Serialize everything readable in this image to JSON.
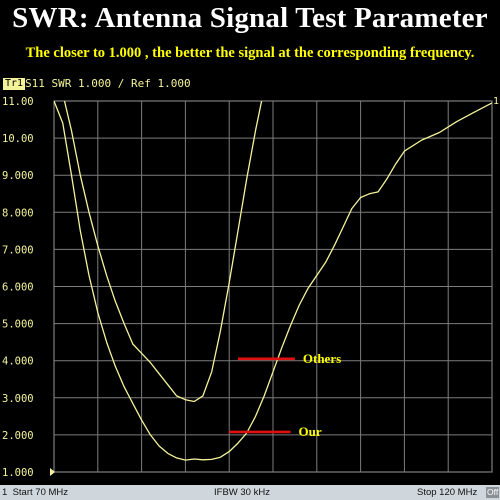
{
  "banner": {
    "title": "SWR: Antenna Signal Test Parameter",
    "subtitle": "The closer to 1.000 , the better the signal at the corresponding frequency."
  },
  "trace_header": {
    "badge": "Tr1",
    "text": "S11 SWR 1.000 / Ref 1.000"
  },
  "status_bar": {
    "channel": "1",
    "start": "Start 70 MHz",
    "ifbw": "IFBW 30 kHz",
    "stop": "Stop 120 MHz",
    "off": "Off"
  },
  "colors": {
    "trace": "#f4f39a",
    "grid": "#7d7d7d",
    "axis_labels": "#f4f39a",
    "annotation_line": "#e01010",
    "annotation_text": "#ffff00",
    "title": "#ffffff",
    "subtitle": "#ffff00"
  },
  "chart_data": {
    "type": "line",
    "x_unit": "MHz",
    "xlim": [
      70,
      120
    ],
    "ylim": [
      1.0,
      11.0
    ],
    "y_ticks": [
      {
        "value": 1,
        "label": "1.000"
      },
      {
        "value": 2,
        "label": "2.000"
      },
      {
        "value": 3,
        "label": "3.000"
      },
      {
        "value": 4,
        "label": "4.000"
      },
      {
        "value": 5,
        "label": "5.000"
      },
      {
        "value": 6,
        "label": "6.000"
      },
      {
        "value": 7,
        "label": "7.000"
      },
      {
        "value": 8,
        "label": "8.000"
      },
      {
        "value": 9,
        "label": "9.000"
      },
      {
        "value": 10,
        "label": "10.00"
      },
      {
        "value": 11,
        "label": "11.00"
      }
    ],
    "x_divisions": 10,
    "grid": true,
    "series": [
      {
        "name": "Our",
        "points": [
          [
            70.0,
            11.0
          ],
          [
            71.0,
            10.4
          ],
          [
            72.0,
            9.0
          ],
          [
            73.0,
            7.5
          ],
          [
            74.0,
            6.3
          ],
          [
            75.0,
            5.3
          ],
          [
            76.0,
            4.5
          ],
          [
            77.0,
            3.85
          ],
          [
            78.0,
            3.3
          ],
          [
            79.0,
            2.85
          ],
          [
            80.0,
            2.4
          ],
          [
            81.0,
            2.0
          ],
          [
            82.0,
            1.7
          ],
          [
            83.0,
            1.5
          ],
          [
            84.0,
            1.38
          ],
          [
            85.0,
            1.32
          ],
          [
            86.0,
            1.35
          ],
          [
            87.0,
            1.33
          ],
          [
            88.0,
            1.34
          ],
          [
            89.0,
            1.4
          ],
          [
            90.0,
            1.55
          ],
          [
            91.0,
            1.78
          ],
          [
            92.0,
            2.05
          ],
          [
            93.0,
            2.5
          ],
          [
            94.0,
            3.05
          ],
          [
            95.0,
            3.7
          ],
          [
            96.0,
            4.35
          ],
          [
            97.0,
            4.95
          ],
          [
            98.0,
            5.5
          ],
          [
            99.0,
            5.95
          ],
          [
            100.0,
            6.3
          ],
          [
            101.0,
            6.65
          ],
          [
            102.0,
            7.1
          ],
          [
            103.0,
            7.6
          ],
          [
            104.0,
            8.1
          ],
          [
            105.0,
            8.4
          ],
          [
            106.0,
            8.5
          ],
          [
            107.0,
            8.55
          ],
          [
            108.0,
            8.9
          ],
          [
            109.0,
            9.3
          ],
          [
            110.0,
            9.65
          ],
          [
            112.0,
            9.95
          ],
          [
            114.0,
            10.15
          ],
          [
            116.0,
            10.45
          ],
          [
            118.0,
            10.7
          ],
          [
            120.0,
            10.95
          ]
        ]
      },
      {
        "name": "Others",
        "points": [
          [
            71.2,
            11.0
          ],
          [
            72.0,
            10.2
          ],
          [
            73.0,
            9.0
          ],
          [
            74.0,
            8.0
          ],
          [
            75.0,
            7.1
          ],
          [
            76.0,
            6.3
          ],
          [
            77.0,
            5.6
          ],
          [
            78.0,
            5.0
          ],
          [
            79.0,
            4.45
          ],
          [
            80.0,
            4.2
          ],
          [
            81.0,
            3.95
          ],
          [
            82.0,
            3.65
          ],
          [
            83.0,
            3.35
          ],
          [
            84.0,
            3.05
          ],
          [
            85.0,
            2.95
          ],
          [
            86.0,
            2.9
          ],
          [
            87.0,
            3.05
          ],
          [
            88.0,
            3.7
          ],
          [
            89.0,
            4.8
          ],
          [
            90.0,
            6.1
          ],
          [
            91.0,
            7.5
          ],
          [
            92.0,
            8.9
          ],
          [
            93.0,
            10.2
          ],
          [
            93.7,
            11.0
          ]
        ]
      }
    ],
    "annotations": [
      {
        "label": "Others",
        "line_from": [
          91.0,
          4.05
        ],
        "line_to": [
          97.5,
          4.05
        ]
      },
      {
        "label": "Our",
        "line_from": [
          90.0,
          2.08
        ],
        "line_to": [
          97.0,
          2.08
        ]
      }
    ],
    "edge_label": "1"
  }
}
